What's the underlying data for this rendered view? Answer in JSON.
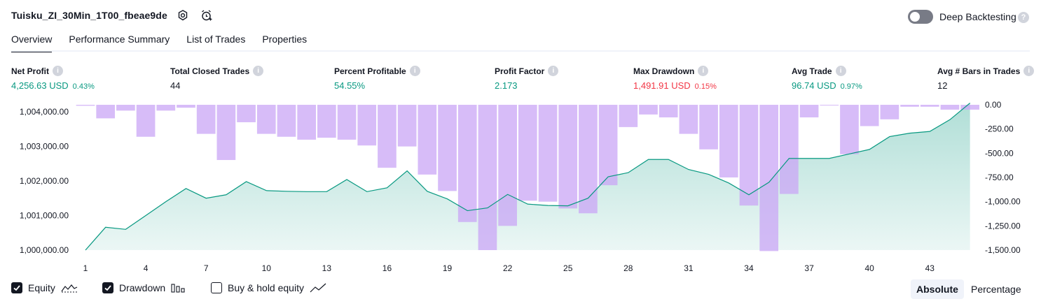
{
  "header": {
    "title": "Tuisku_ZI_30Min_1T00_fbeae9de",
    "deep_backtesting_label": "Deep Backtesting",
    "deep_backtesting_on": false
  },
  "tabs": [
    {
      "label": "Overview",
      "active": true
    },
    {
      "label": "Performance Summary",
      "active": false
    },
    {
      "label": "List of Trades",
      "active": false
    },
    {
      "label": "Properties",
      "active": false
    }
  ],
  "metrics": [
    {
      "label": "Net Profit",
      "value": "4,256.63 USD",
      "sub": "0.43%",
      "color": "green"
    },
    {
      "label": "Total Closed Trades",
      "value": "44",
      "sub": "",
      "color": "dark"
    },
    {
      "label": "Percent Profitable",
      "value": "54.55%",
      "sub": "",
      "color": "green"
    },
    {
      "label": "Profit Factor",
      "value": "2.173",
      "sub": "",
      "color": "green"
    },
    {
      "label": "Max Drawdown",
      "value": "1,491.91 USD",
      "sub": "0.15%",
      "color": "red"
    },
    {
      "label": "Avg Trade",
      "value": "96.74 USD",
      "sub": "0.97%",
      "color": "green"
    },
    {
      "label": "Avg # Bars in Trades",
      "value": "12",
      "sub": "",
      "color": "dark"
    }
  ],
  "chart_data": {
    "type": "line",
    "x": [
      1,
      2,
      3,
      4,
      5,
      6,
      7,
      8,
      9,
      10,
      11,
      12,
      13,
      14,
      15,
      16,
      17,
      18,
      19,
      20,
      21,
      22,
      23,
      24,
      25,
      26,
      27,
      28,
      29,
      30,
      31,
      32,
      33,
      34,
      35,
      36,
      37,
      38,
      39,
      40,
      41,
      42,
      43,
      44,
      45
    ],
    "x_ticks": [
      "1",
      "4",
      "7",
      "10",
      "13",
      "16",
      "19",
      "22",
      "25",
      "28",
      "31",
      "34",
      "37",
      "40",
      "43"
    ],
    "left_axis": {
      "ticks": [
        "1,000,000.00",
        "1,001,000.00",
        "1,002,000.00",
        "1,003,000.00",
        "1,004,000.00"
      ],
      "ylim": [
        1000000,
        1004200
      ]
    },
    "right_axis": {
      "ticks": [
        "0.00",
        "-250.00",
        "-500.00",
        "-750.00",
        "-1,000.00",
        "-1,250.00",
        "-1,500.00"
      ],
      "ylim": [
        -1500,
        0
      ]
    },
    "series": [
      {
        "name": "Equity",
        "color": "#089981",
        "values": [
          1000000,
          1000660,
          1000600,
          1001000,
          1001400,
          1001780,
          1001500,
          1001600,
          1001980,
          1001720,
          1001700,
          1001690,
          1001690,
          1002040,
          1001690,
          1001800,
          1002290,
          1001700,
          1001480,
          1001140,
          1001220,
          1001610,
          1001330,
          1001290,
          1001280,
          1001500,
          1002120,
          1002240,
          1002620,
          1002620,
          1002330,
          1002190,
          1001940,
          1001600,
          1001960,
          1002650,
          1002650,
          1002650,
          1002780,
          1002910,
          1003280,
          1003380,
          1003430,
          1003770,
          1004250
        ]
      },
      {
        "name": "Drawdown",
        "color": "#c9a6f5",
        "values": [
          -10,
          -140,
          -60,
          -330,
          -60,
          -30,
          -300,
          -570,
          -180,
          -300,
          -330,
          -360,
          -340,
          -360,
          -420,
          -650,
          -430,
          -720,
          -890,
          -1210,
          -1500,
          -1250,
          -990,
          -1000,
          -1070,
          -1120,
          -830,
          -230,
          -100,
          -130,
          -300,
          -460,
          -750,
          -1040,
          -1510,
          -920,
          -130,
          0,
          -510,
          -220,
          -150,
          -20,
          -20,
          -50,
          -50
        ]
      }
    ]
  },
  "legend": [
    {
      "label": "Equity",
      "checked": true
    },
    {
      "label": "Drawdown",
      "checked": true
    },
    {
      "label": "Buy & hold equity",
      "checked": false
    }
  ],
  "view_modes": [
    {
      "label": "Absolute",
      "active": true
    },
    {
      "label": "Percentage",
      "active": false
    }
  ]
}
